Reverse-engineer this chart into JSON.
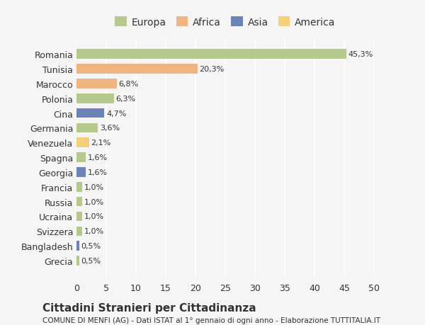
{
  "countries": [
    "Romania",
    "Tunisia",
    "Marocco",
    "Polonia",
    "Cina",
    "Germania",
    "Venezuela",
    "Spagna",
    "Georgia",
    "Francia",
    "Russia",
    "Ucraina",
    "Svizzera",
    "Bangladesh",
    "Grecia"
  ],
  "values": [
    45.3,
    20.3,
    6.8,
    6.3,
    4.7,
    3.6,
    2.1,
    1.6,
    1.6,
    1.0,
    1.0,
    1.0,
    1.0,
    0.5,
    0.5
  ],
  "labels": [
    "45,3%",
    "20,3%",
    "6,8%",
    "6,3%",
    "4,7%",
    "3,6%",
    "2,1%",
    "1,6%",
    "1,6%",
    "1,0%",
    "1,0%",
    "1,0%",
    "1,0%",
    "0,5%",
    "0,5%"
  ],
  "colors": [
    "#b5c98e",
    "#f0b482",
    "#f0b482",
    "#b5c98e",
    "#6b83b5",
    "#b5c98e",
    "#f5d07a",
    "#b5c98e",
    "#6b83b5",
    "#b5c98e",
    "#b5c98e",
    "#b5c98e",
    "#b5c98e",
    "#6b83b5",
    "#b5c98e"
  ],
  "legend_labels": [
    "Europa",
    "Africa",
    "Asia",
    "America"
  ],
  "legend_colors": [
    "#b5c98e",
    "#f0b482",
    "#6b83b5",
    "#f5d07a"
  ],
  "xlim": [
    0,
    50
  ],
  "xticks": [
    0,
    5,
    10,
    15,
    20,
    25,
    30,
    35,
    40,
    45,
    50
  ],
  "title": "Cittadini Stranieri per Cittadinanza",
  "subtitle": "COMUNE DI MENFI (AG) - Dati ISTAT al 1° gennaio di ogni anno - Elaborazione TUTTITALIA.IT",
  "bg_color": "#f5f5f5",
  "grid_color": "#ffffff",
  "text_color": "#333333"
}
